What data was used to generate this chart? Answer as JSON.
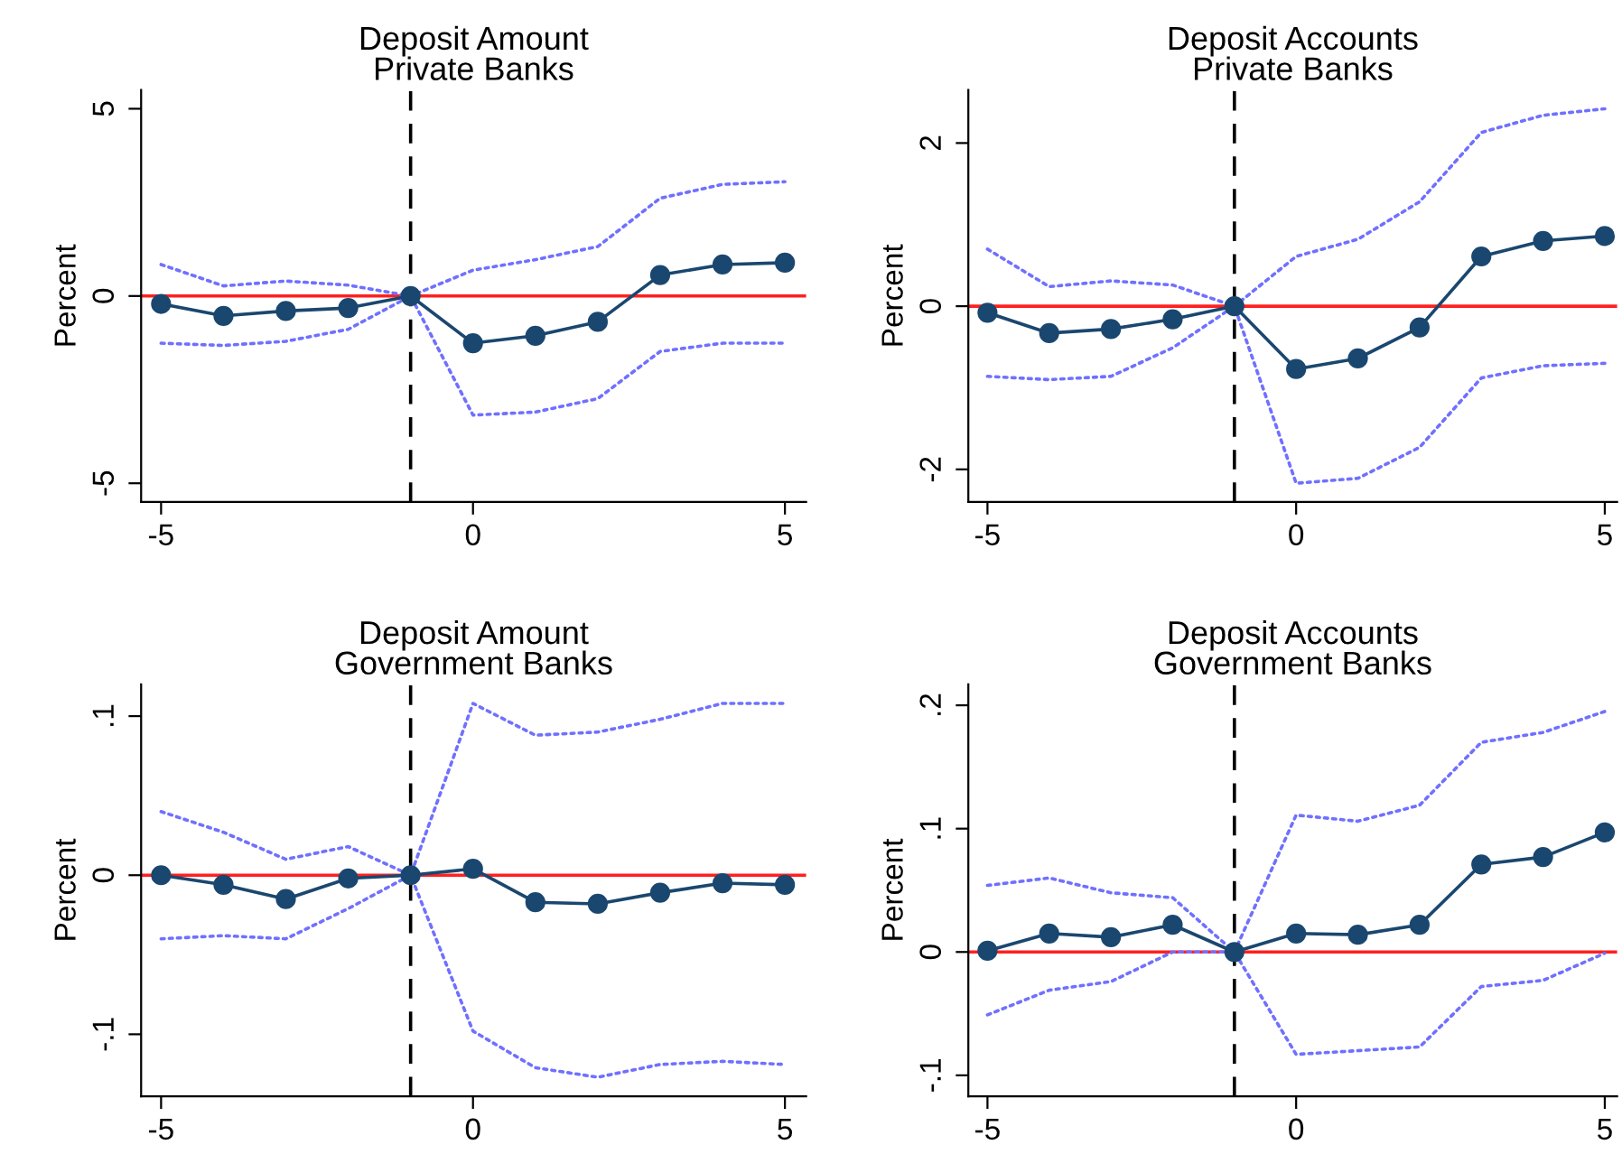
{
  "chart_data": [
    {
      "type": "line",
      "title": "Deposit Amount\nPrivate Banks",
      "ylabel": "Percent",
      "x": [
        -5,
        -4,
        -3,
        -2,
        -1,
        0,
        1,
        2,
        3,
        4,
        5
      ],
      "xlim": [
        -5.32,
        5.34
      ],
      "xticks": [
        -5,
        0,
        5
      ],
      "ylim": [
        -5.5,
        5.5
      ],
      "yticks": [
        -5,
        0,
        5
      ],
      "grid": false,
      "series": [
        {
          "color": "#7070ff",
          "marker": "none",
          "line_style": "dotted",
          "values": [
            0.84,
            0.27,
            0.4,
            0.29,
            0,
            0.69,
            0.97,
            1.32,
            2.61,
            2.98,
            3.05
          ]
        },
        {
          "color": "#7070ff",
          "marker": "none",
          "line_style": "dotted",
          "values": [
            -1.26,
            -1.32,
            -1.21,
            -0.89,
            0,
            -3.18,
            -3.1,
            -2.74,
            -1.48,
            -1.26,
            -1.26
          ]
        },
        {
          "color": "#1a476f",
          "marker": "circle",
          "line_style": "solid",
          "values": [
            -0.21,
            -0.53,
            -0.4,
            -0.32,
            0,
            -1.26,
            -1.06,
            -0.69,
            0.56,
            0.84,
            0.89
          ]
        }
      ],
      "ref_lines": [
        {
          "axis": "y",
          "value": 0,
          "color": "#ff2020",
          "line_style": "solid"
        },
        {
          "axis": "x",
          "value": -1,
          "color": "#000000",
          "line_style": "dashed"
        }
      ]
    },
    {
      "type": "line",
      "title": "Deposit Accounts\nPrivate Banks",
      "ylabel": "Percent",
      "x": [
        -5,
        -4,
        -3,
        -2,
        -1,
        0,
        1,
        2,
        3,
        4,
        5
      ],
      "xlim": [
        -5.31,
        5.2
      ],
      "xticks": [
        -5,
        0,
        5
      ],
      "ylim": [
        -2.4,
        2.65
      ],
      "yticks": [
        -2,
        0,
        2
      ],
      "grid": false,
      "series": [
        {
          "color": "#7070ff",
          "marker": "none",
          "line_style": "dotted",
          "values": [
            0.7,
            0.24,
            0.31,
            0.26,
            0,
            0.61,
            0.82,
            1.28,
            2.13,
            2.34,
            2.42
          ]
        },
        {
          "color": "#7070ff",
          "marker": "none",
          "line_style": "dotted",
          "values": [
            -0.86,
            -0.9,
            -0.86,
            -0.51,
            0,
            -2.17,
            -2.11,
            -1.73,
            -0.88,
            -0.73,
            -0.7
          ]
        },
        {
          "color": "#1a476f",
          "marker": "circle",
          "line_style": "solid",
          "values": [
            -0.08,
            -0.33,
            -0.28,
            -0.16,
            0,
            -0.77,
            -0.64,
            -0.26,
            0.61,
            0.8,
            0.86
          ]
        }
      ],
      "ref_lines": [
        {
          "axis": "y",
          "value": 0,
          "color": "#ff2020",
          "line_style": "solid"
        },
        {
          "axis": "x",
          "value": -1,
          "color": "#000000",
          "line_style": "dashed"
        }
      ]
    },
    {
      "type": "line",
      "title": "Deposit Amount\nGovernment Banks",
      "ylabel": "Percent",
      "x": [
        -5,
        -4,
        -3,
        -2,
        -1,
        0,
        1,
        2,
        3,
        4,
        5
      ],
      "xlim": [
        -5.32,
        5.34
      ],
      "xticks": [
        -5,
        0,
        5
      ],
      "ylim": [
        -0.139,
        0.12
      ],
      "yticks": [
        {
          "value": -0.1,
          "label": "-.1"
        },
        0,
        {
          "value": 0.1,
          "label": ".1"
        }
      ],
      "grid": false,
      "series": [
        {
          "color": "#7070ff",
          "marker": "none",
          "line_style": "dotted",
          "values": [
            0.04,
            0.027,
            0.01,
            0.018,
            0,
            0.108,
            0.088,
            0.09,
            0.098,
            0.108,
            0.108
          ]
        },
        {
          "color": "#7070ff",
          "marker": "none",
          "line_style": "dotted",
          "values": [
            -0.04,
            -0.038,
            -0.04,
            -0.021,
            0,
            -0.098,
            -0.121,
            -0.127,
            -0.119,
            -0.117,
            -0.119
          ]
        },
        {
          "color": "#1a476f",
          "marker": "circle",
          "line_style": "solid",
          "values": [
            0,
            -0.006,
            -0.015,
            -0.002,
            0,
            0.004,
            -0.017,
            -0.018,
            -0.011,
            -0.005,
            -0.006
          ]
        }
      ],
      "ref_lines": [
        {
          "axis": "y",
          "value": 0,
          "color": "#ff2020",
          "line_style": "solid"
        },
        {
          "axis": "x",
          "value": -1,
          "color": "#000000",
          "line_style": "dashed"
        }
      ]
    },
    {
      "type": "line",
      "title": "Deposit Accounts\nGovernment Banks",
      "ylabel": "Percent",
      "x": [
        -5,
        -4,
        -3,
        -2,
        -1,
        0,
        1,
        2,
        3,
        4,
        5
      ],
      "xlim": [
        -5.31,
        5.2
      ],
      "xticks": [
        -5,
        0,
        5
      ],
      "ylim": [
        -0.117,
        0.217
      ],
      "yticks": [
        {
          "value": -0.1,
          "label": "-.1"
        },
        0,
        {
          "value": 0.1,
          "label": ".1"
        },
        {
          "value": 0.2,
          "label": ".2"
        }
      ],
      "grid": false,
      "series": [
        {
          "color": "#7070ff",
          "marker": "none",
          "line_style": "dotted",
          "values": [
            0.054,
            0.06,
            0.048,
            0.044,
            0,
            0.111,
            0.106,
            0.119,
            0.17,
            0.178,
            0.195
          ]
        },
        {
          "color": "#7070ff",
          "marker": "none",
          "line_style": "dotted",
          "values": [
            -0.051,
            -0.031,
            -0.024,
            0,
            0,
            -0.083,
            -0.08,
            -0.077,
            -0.028,
            -0.023,
            -0.001
          ]
        },
        {
          "color": "#1a476f",
          "marker": "circle",
          "line_style": "solid",
          "values": [
            0.001,
            0.015,
            0.012,
            0.022,
            0,
            0.015,
            0.014,
            0.022,
            0.071,
            0.077,
            0.097
          ]
        }
      ],
      "ref_lines": [
        {
          "axis": "y",
          "value": 0,
          "color": "#ff2020",
          "line_style": "solid"
        },
        {
          "axis": "x",
          "value": -1,
          "color": "#000000",
          "line_style": "dashed"
        }
      ]
    }
  ]
}
